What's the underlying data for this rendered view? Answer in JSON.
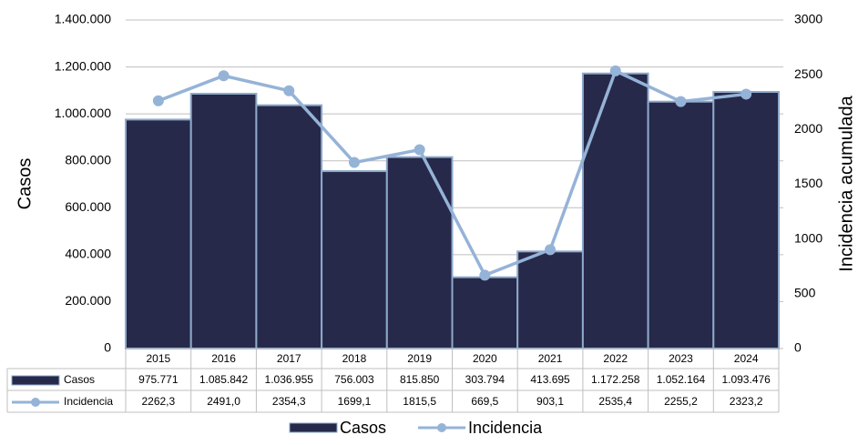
{
  "chart_data": {
    "type": "combo",
    "categories": [
      "2015",
      "2016",
      "2017",
      "2018",
      "2019",
      "2020",
      "2021",
      "2022",
      "2023",
      "2024"
    ],
    "series": [
      {
        "name": "Casos",
        "type": "bar",
        "color": "#262949",
        "values": [
          975771,
          1085842,
          1036955,
          756003,
          815850,
          303794,
          413695,
          1172258,
          1052164,
          1093476
        ],
        "value_labels": [
          "975.771",
          "1.085.842",
          "1.036.955",
          "756.003",
          "815.850",
          "303.794",
          "413.695",
          "1.172.258",
          "1.052.164",
          "1.093.476"
        ]
      },
      {
        "name": "Incidencia",
        "type": "line",
        "axis": "y2",
        "color": "#95b3d7",
        "values": [
          2262.3,
          2491.0,
          2354.3,
          1699.1,
          1815.5,
          669.5,
          903.1,
          2535.4,
          2255.2,
          2323.2
        ],
        "value_labels": [
          "2262,3",
          "2491,0",
          "2354,3",
          "1699,1",
          "1815,5",
          "669,5",
          "903,1",
          "2535,4",
          "2255,2",
          "2323,2"
        ]
      }
    ],
    "y_label": "Casos",
    "y2_label": "Incidencia acumulada",
    "ylim": [
      0,
      1400000
    ],
    "yticks": [
      0,
      {
        "value": 200000,
        "label": "200.000"
      },
      {
        "value": 400000,
        "label": "400.000"
      },
      {
        "value": 600000,
        "label": "600.000"
      },
      {
        "value": 800000,
        "label": "800.000"
      },
      {
        "value": 1000000,
        "label": "1.000.000"
      },
      {
        "value": 1200000,
        "label": "1.200.000"
      },
      {
        "value": 1400000,
        "label": "1.400.000"
      }
    ],
    "y2lim": [
      0,
      3000
    ],
    "y2ticks": [
      0,
      500,
      1000,
      1500,
      2000,
      2500,
      3000
    ],
    "grid": true
  }
}
